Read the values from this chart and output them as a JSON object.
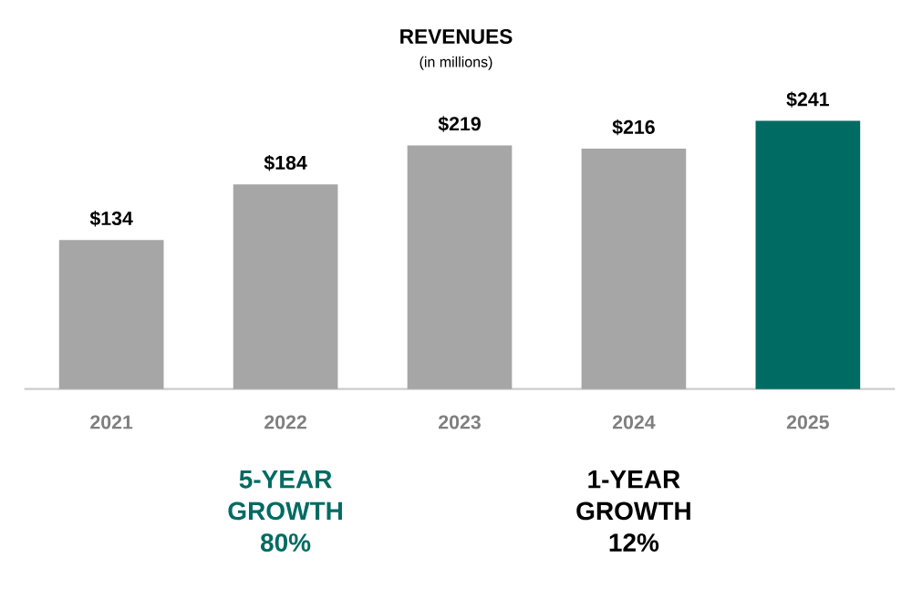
{
  "chart_data": {
    "type": "bar",
    "title": "REVENUES",
    "subtitle": "(in millions)",
    "categories": [
      "2021",
      "2022",
      "2023",
      "2024",
      "2025"
    ],
    "values": [
      134,
      184,
      219,
      216,
      241
    ],
    "value_labels": [
      "$134",
      "$184",
      "$219",
      "$216",
      "$241"
    ],
    "colors": [
      "#a6a6a6",
      "#a6a6a6",
      "#a6a6a6",
      "#a6a6a6",
      "#006b63"
    ],
    "annotations": [
      "5-YEAR GROWTH 80%",
      "1-YEAR GROWTH 12%"
    ]
  }
}
